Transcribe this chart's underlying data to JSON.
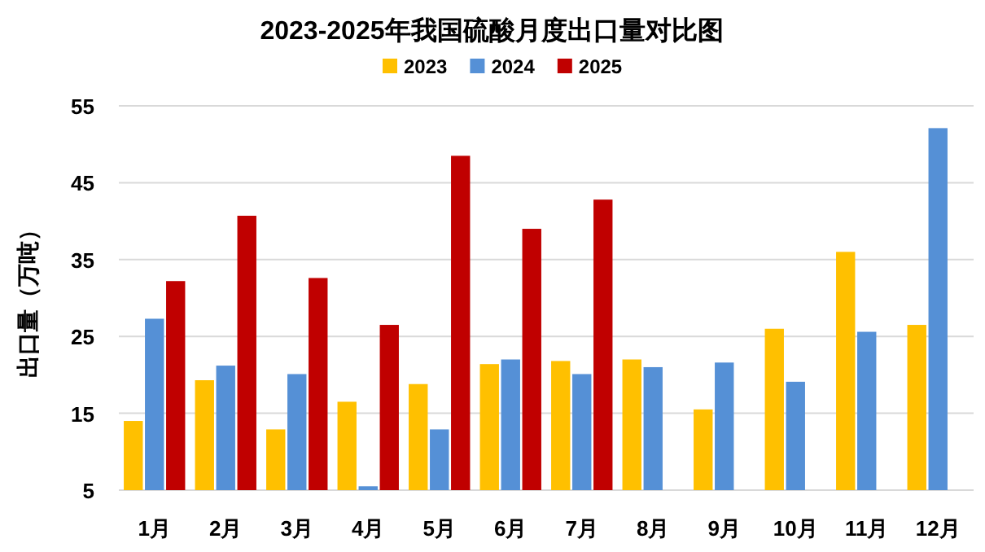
{
  "chart_data": {
    "type": "bar",
    "title": "2023-2025年我国硫酸月度出口量对比图",
    "ylabel": "出口量（万吨）",
    "categories": [
      "1月",
      "2月",
      "3月",
      "4月",
      "5月",
      "6月",
      "7月",
      "8月",
      "9月",
      "10月",
      "11月",
      "12月"
    ],
    "series": [
      {
        "name": "2023",
        "color": "#ffc000",
        "values": [
          14.0,
          19.3,
          12.9,
          16.5,
          18.8,
          21.4,
          21.8,
          22.0,
          15.5,
          26.0,
          36.0,
          26.5
        ]
      },
      {
        "name": "2024",
        "color": "#5590d6",
        "values": [
          27.3,
          21.2,
          20.1,
          5.5,
          12.9,
          22.0,
          20.1,
          21.0,
          21.6,
          19.1,
          25.6,
          52.1
        ]
      },
      {
        "name": "2025",
        "color": "#c00000",
        "values": [
          32.2,
          40.7,
          32.6,
          26.5,
          48.5,
          39.0,
          42.8,
          null,
          null,
          null,
          null,
          null
        ]
      }
    ],
    "ylim": [
      5,
      55
    ],
    "yticks": [
      5,
      15,
      25,
      35,
      45,
      55
    ],
    "grid": "y",
    "legend": "top"
  }
}
